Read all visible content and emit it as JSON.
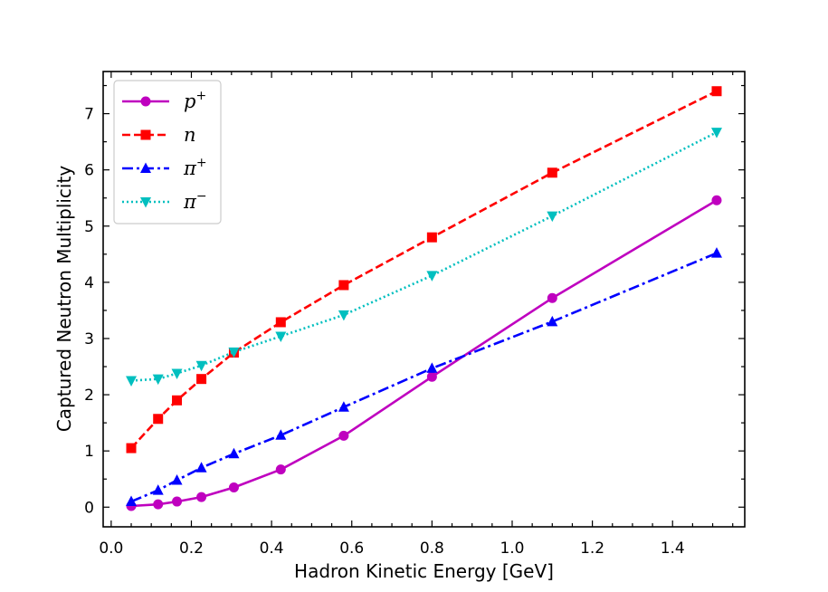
{
  "chart_data": {
    "type": "line",
    "title": "",
    "xlabel": "Hadron Kinetic Energy [GeV]",
    "ylabel": "Captured Neutron Multiplicity",
    "xlim": [
      -0.02,
      1.58
    ],
    "ylim": [
      -0.35,
      7.75
    ],
    "xticks": [
      0.0,
      0.2,
      0.4,
      0.6,
      0.8,
      1.0,
      1.2,
      1.4
    ],
    "xtick_labels": [
      "0.0",
      "0.2",
      "0.4",
      "0.6",
      "0.8",
      "1.0",
      "1.2",
      "1.4"
    ],
    "yticks": [
      0,
      1,
      2,
      3,
      4,
      5,
      6,
      7
    ],
    "ytick_labels": [
      "0",
      "1",
      "2",
      "3",
      "4",
      "5",
      "6",
      "7"
    ],
    "grid": false,
    "legend_position": "top-left",
    "x": [
      0.05,
      0.117,
      0.164,
      0.225,
      0.306,
      0.423,
      0.58,
      0.8,
      1.1,
      1.51
    ],
    "series": [
      {
        "name": "p+",
        "base": "p",
        "sup": "+",
        "color": "#bf00bf",
        "marker": "circle",
        "dash": "",
        "values": [
          0.02,
          0.05,
          0.1,
          0.18,
          0.35,
          0.67,
          1.27,
          2.32,
          3.72,
          5.46
        ]
      },
      {
        "name": "n",
        "base": "n",
        "sup": "",
        "color": "#ff0000",
        "marker": "square",
        "dash": "9,4",
        "values": [
          1.05,
          1.57,
          1.9,
          2.28,
          2.75,
          3.29,
          3.95,
          4.8,
          5.95,
          7.4
        ]
      },
      {
        "name": "π+",
        "base": "π",
        "sup": "+",
        "color": "#0000ff",
        "marker": "triangle-up",
        "dash": "12,4,3,4",
        "values": [
          0.1,
          0.3,
          0.48,
          0.7,
          0.95,
          1.28,
          1.78,
          2.47,
          3.3,
          4.52
        ]
      },
      {
        "name": "π−",
        "base": "π",
        "sup": "−",
        "color": "#00bfbf",
        "marker": "triangle-down",
        "dash": "2,3",
        "values": [
          2.25,
          2.28,
          2.38,
          2.52,
          2.76,
          3.04,
          3.42,
          4.12,
          5.18,
          6.67
        ]
      }
    ]
  }
}
